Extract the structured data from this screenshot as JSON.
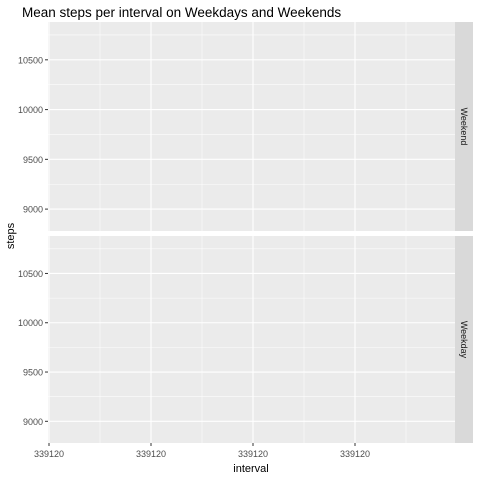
{
  "chart_data": {
    "type": "line",
    "title": "Mean steps per interval on Weekdays and Weekends",
    "xlabel": "interval",
    "ylabel": "steps",
    "ylim": [
      8780,
      10880
    ],
    "y_ticks": [
      9000,
      9500,
      10000,
      10500
    ],
    "x_tick_labels": [
      "339120",
      "339120",
      "339120",
      "339120"
    ],
    "grid": true,
    "panels": [
      {
        "label": "Weekend",
        "series": []
      },
      {
        "label": "Weekday",
        "series": []
      }
    ],
    "colors": {
      "panel_bg": "#ebebeb",
      "grid_major": "#ffffff",
      "strip_bg": "#d9d9d9",
      "tick_text": "#4d4d4d",
      "text": "#000000"
    }
  }
}
